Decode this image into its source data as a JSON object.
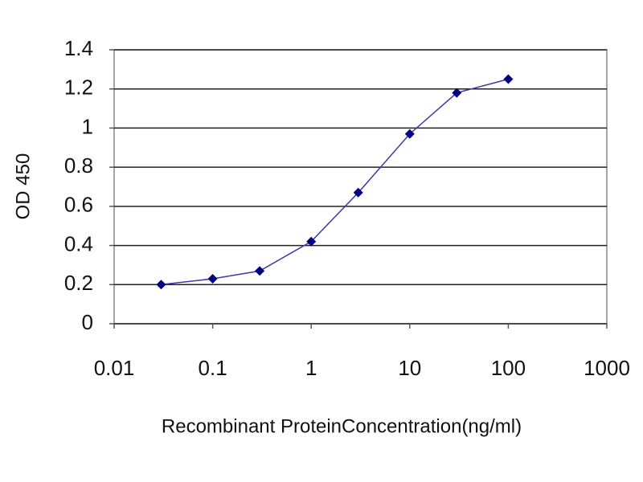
{
  "chart_data": {
    "type": "line",
    "xlabel": "Recombinant ProteinConcentration(ng/ml)",
    "ylabel": "OD 450",
    "x": [
      0.03,
      0.1,
      0.3,
      1,
      3,
      10,
      30,
      100
    ],
    "values": [
      0.2,
      0.23,
      0.27,
      0.42,
      0.67,
      0.97,
      1.18,
      1.25
    ],
    "color": "#000080",
    "log_x": true,
    "xlim": [
      0.01,
      1000
    ],
    "xticks": [
      0.01,
      0.1,
      1,
      10,
      100,
      1000
    ],
    "ylim": [
      0,
      1.4
    ],
    "yticks": [
      0,
      0.2,
      0.4,
      0.6,
      0.8,
      1,
      1.2,
      1.4
    ],
    "grid": true
  }
}
